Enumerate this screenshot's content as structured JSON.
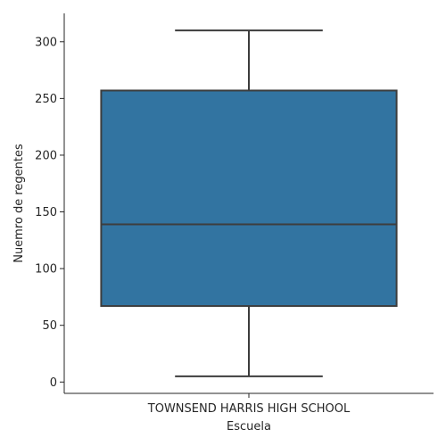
{
  "chart_data": {
    "type": "box",
    "title": "",
    "xlabel": "Escuela",
    "ylabel": "Nuemro de regentes",
    "categories": [
      "TOWNSEND HARRIS HIGH SCHOOL"
    ],
    "boxes": [
      {
        "category": "TOWNSEND HARRIS HIGH SCHOOL",
        "whisker_low": 5,
        "q1": 67,
        "median": 139,
        "q3": 257,
        "whisker_high": 310
      }
    ],
    "ylim": [
      -10,
      325
    ],
    "yticks": [
      0,
      50,
      100,
      150,
      200,
      250,
      300
    ],
    "grid": false,
    "colors": {
      "box_fill": "#3274a1",
      "line": "#3d3d3d",
      "axis": "#262626"
    }
  }
}
